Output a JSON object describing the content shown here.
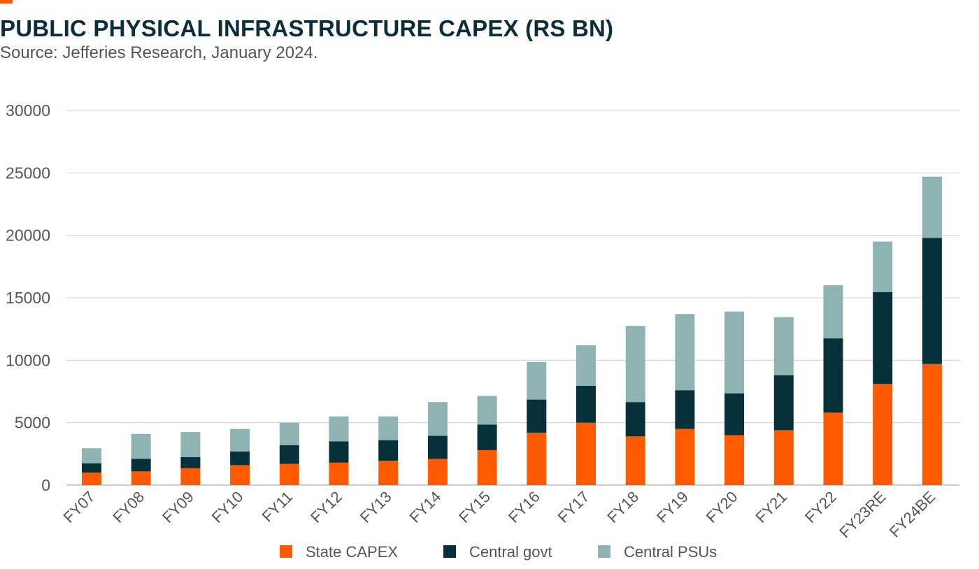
{
  "header": {
    "title": "PUBLIC PHYSICAL INFRASTRUCTURE CAPEX (RS BN)",
    "subtitle": "Source: Jefferies Research, January 2024."
  },
  "colors": {
    "accent": "#ff5a00",
    "state": "#ff5a00",
    "central_govt": "#06303a",
    "central_psus": "#8fb2b2",
    "grid": "#d0d0d0",
    "text": "#555555"
  },
  "chart_data": {
    "type": "bar",
    "stacked": true,
    "title": "PUBLIC PHYSICAL INFRASTRUCTURE CAPEX (RS BN)",
    "xlabel": "",
    "ylabel": "",
    "ylim": [
      0,
      30000
    ],
    "yticks": [
      "0",
      "5000",
      "10000",
      "15000",
      "20000",
      "25000",
      "30000"
    ],
    "grid": true,
    "legend_position": "bottom",
    "categories": [
      "FY07",
      "FY08",
      "FY09",
      "FY10",
      "FY11",
      "FY12",
      "FY13",
      "FY14",
      "FY15",
      "FY16",
      "FY17",
      "FY18",
      "FY19",
      "FY20",
      "FY21",
      "FY22",
      "FY23RE",
      "FY24BE"
    ],
    "series": [
      {
        "name": "State CAPEX",
        "color": "#ff5a00",
        "values": [
          1000,
          1100,
          1350,
          1600,
          1700,
          1800,
          1950,
          2100,
          2800,
          4200,
          5000,
          3900,
          4500,
          4000,
          4400,
          5800,
          8100,
          9700
        ]
      },
      {
        "name": "Central govt",
        "color": "#06303a",
        "values": [
          750,
          1000,
          900,
          1100,
          1500,
          1700,
          1650,
          1850,
          2050,
          2650,
          2950,
          2750,
          3100,
          3350,
          4400,
          5950,
          7350,
          10100
        ]
      },
      {
        "name": "Central PSUs",
        "color": "#8fb2b2",
        "values": [
          1200,
          2000,
          2000,
          1800,
          1800,
          2000,
          1900,
          2700,
          2300,
          3000,
          3250,
          6100,
          6100,
          6550,
          4650,
          4250,
          4050,
          4900
        ]
      }
    ]
  }
}
